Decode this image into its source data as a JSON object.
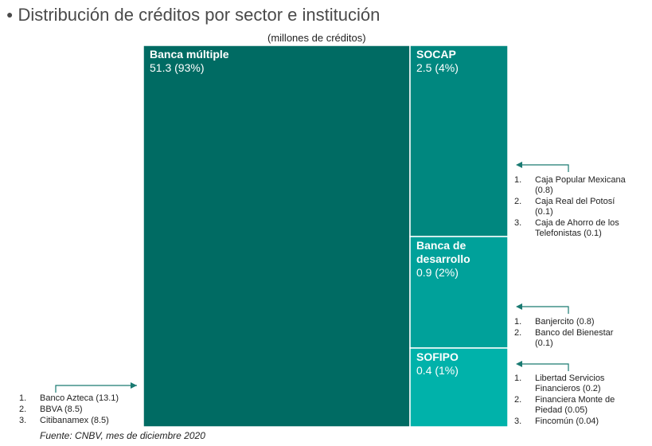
{
  "title": "Distribución de créditos por sector e institución",
  "subtitle": "(millones de créditos)",
  "source": "Fuente: CNBV, mes de diciembre 2020",
  "colors": {
    "banca_multiple": "#006b63",
    "socap": "#00877f",
    "banca_desarrollo": "#00a19a",
    "sofipo": "#00b2aa",
    "arrow": "#1a7a72"
  },
  "chart_data": {
    "type": "treemap",
    "title": "Distribución de créditos por sector e institución",
    "unit": "millones de créditos",
    "items": [
      {
        "name": "Banca múltiple",
        "value": 51.3,
        "share": 93,
        "label": "51.3 (93%)"
      },
      {
        "name": "SOCAP",
        "value": 2.5,
        "share": 4,
        "label": "2.5 (4%)"
      },
      {
        "name": "Banca de desarrollo",
        "value": 0.9,
        "share": 2,
        "label": "0.9 (2%)"
      },
      {
        "name": "SOFIPO",
        "value": 0.4,
        "share": 1,
        "label": "0.4 (1%)"
      }
    ],
    "annotations": {
      "banca_multiple": [
        {
          "num": "1.",
          "text": "Banco Azteca (13.1)"
        },
        {
          "num": "2.",
          "text": "BBVA (8.5)"
        },
        {
          "num": "3.",
          "text": "Citibanamex (8.5)"
        }
      ],
      "socap": [
        {
          "num": "1.",
          "text": "Caja Popular Mexicana (0.8)"
        },
        {
          "num": "2.",
          "text": "Caja Real del Potosí (0.1)"
        },
        {
          "num": "3.",
          "text": "Caja de Ahorro de los Telefonistas (0.1)"
        }
      ],
      "banca_desarrollo": [
        {
          "num": "1.",
          "text": "Banjercito (0.8)"
        },
        {
          "num": "2.",
          "text": "Banco del Bienestar (0.1)"
        }
      ],
      "sofipo": [
        {
          "num": "1.",
          "text": "Libertad Servicios Financieros (0.2)"
        },
        {
          "num": "2.",
          "text": "Financiera Monte de Piedad (0.05)"
        },
        {
          "num": "3.",
          "text": "Fincomún (0.04)"
        }
      ]
    }
  }
}
